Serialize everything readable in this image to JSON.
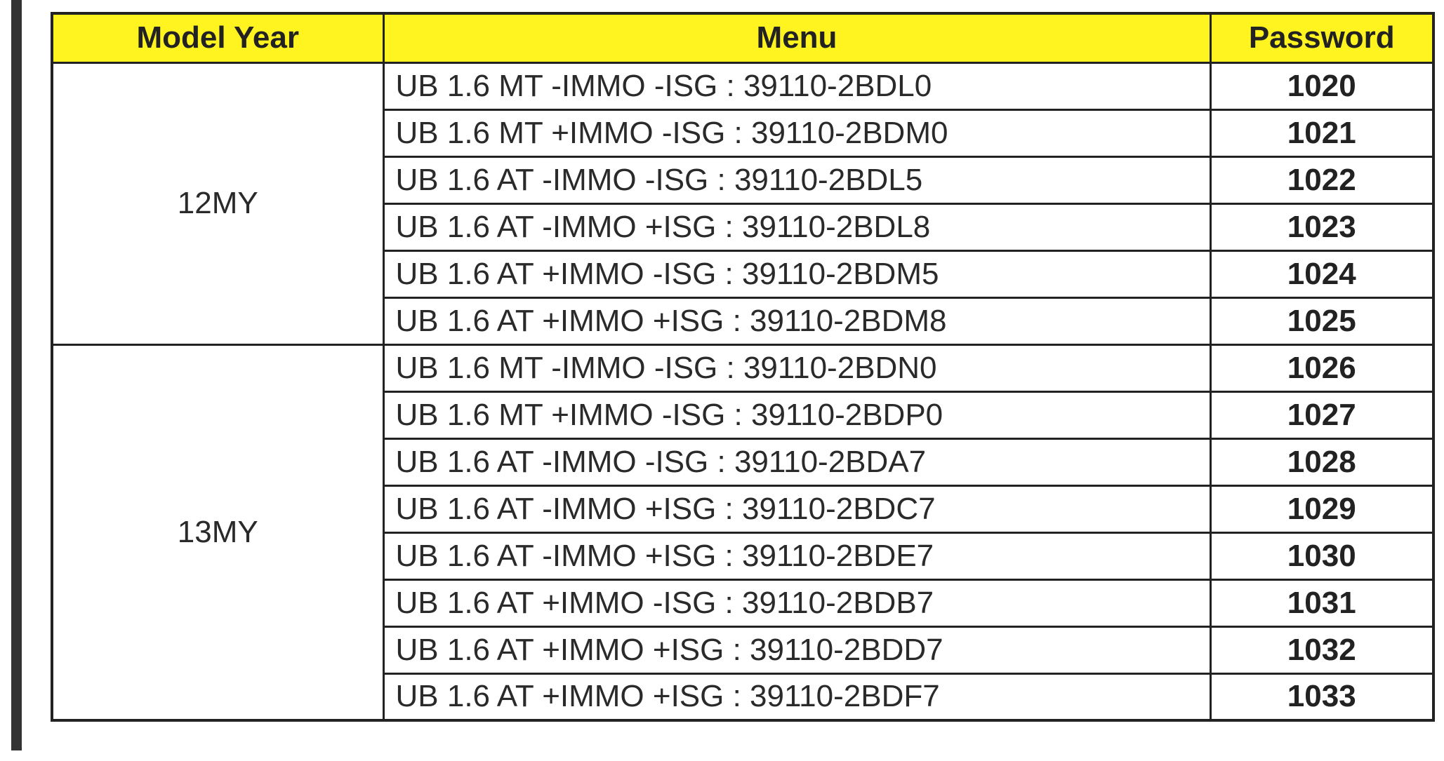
{
  "table": {
    "header": [
      "Model Year",
      "Menu",
      "Password"
    ],
    "groups": [
      {
        "model_year": "12MY",
        "rows": [
          {
            "menu": "UB 1.6 MT -IMMO -ISG : 39110-2BDL0",
            "password": "1020"
          },
          {
            "menu": "UB 1.6 MT +IMMO -ISG : 39110-2BDM0",
            "password": "1021"
          },
          {
            "menu": "UB 1.6 AT -IMMO -ISG : 39110-2BDL5",
            "password": "1022"
          },
          {
            "menu": "UB 1.6 AT -IMMO +ISG : 39110-2BDL8",
            "password": "1023"
          },
          {
            "menu": "UB 1.6 AT +IMMO -ISG : 39110-2BDM5",
            "password": "1024"
          },
          {
            "menu": "UB 1.6 AT +IMMO +ISG : 39110-2BDM8",
            "password": "1025"
          }
        ]
      },
      {
        "model_year": "13MY",
        "rows": [
          {
            "menu": "UB 1.6 MT -IMMO -ISG : 39110-2BDN0",
            "password": "1026"
          },
          {
            "menu": "UB 1.6 MT +IMMO -ISG : 39110-2BDP0",
            "password": "1027"
          },
          {
            "menu": "UB 1.6 AT -IMMO -ISG : 39110-2BDA7",
            "password": "1028"
          },
          {
            "menu": "UB 1.6 AT -IMMO +ISG : 39110-2BDC7",
            "password": "1029"
          },
          {
            "menu": "UB 1.6 AT -IMMO +ISG : 39110-2BDE7",
            "password": "1030"
          },
          {
            "menu": "UB 1.6 AT +IMMO -ISG : 39110-2BDB7",
            "password": "1031"
          },
          {
            "menu": "UB 1.6 AT +IMMO +ISG : 39110-2BDD7",
            "password": "1032"
          },
          {
            "menu": "UB 1.6 AT +IMMO +ISG : 39110-2BDF7",
            "password": "1033"
          }
        ]
      }
    ]
  }
}
